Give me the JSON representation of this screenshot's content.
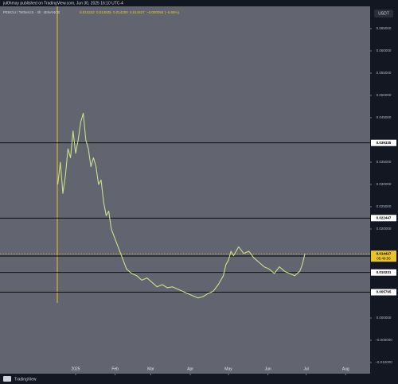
{
  "chart_data": {
    "type": "line",
    "publisher": "jul0hmay published on TradingView.com, Jun 30, 2025 16:10 UTC-4",
    "title": "PENGU / TetherUS · 4h · BINANCE",
    "ohlc": [
      "0.014242",
      "0.014525",
      "0.014259",
      "0.014427",
      "−0.000093 (−0.65%)"
    ],
    "currency": "USDT",
    "brand": "TradingView",
    "x": [
      -14,
      -12,
      -10,
      -8,
      -6,
      -4,
      -2,
      0,
      2,
      4,
      6,
      8,
      10,
      12,
      14,
      16,
      18,
      20,
      22,
      24,
      26,
      28,
      32,
      36,
      40,
      44,
      48,
      52,
      56,
      60,
      64,
      68,
      72,
      76,
      80,
      84,
      88,
      92,
      96,
      100,
      104,
      108,
      112,
      116,
      118,
      120,
      122,
      124,
      128,
      132,
      136,
      140,
      144,
      148,
      152,
      156,
      160,
      164,
      168,
      172,
      176,
      178,
      180
    ],
    "series": [
      {
        "color": "#c8e08a",
        "values": [
          0.03,
          0.035,
          0.028,
          0.032,
          0.038,
          0.036,
          0.042,
          0.037,
          0.04,
          0.044,
          0.046,
          0.04,
          0.038,
          0.034,
          0.036,
          0.034,
          0.03,
          0.031,
          0.026,
          0.023,
          0.024,
          0.02,
          0.017,
          0.014,
          0.011,
          0.01,
          0.0095,
          0.0085,
          0.009,
          0.008,
          0.007,
          0.0075,
          0.0068,
          0.007,
          0.0065,
          0.006,
          0.0055,
          0.005,
          0.0045,
          0.0048,
          0.0055,
          0.006,
          0.0075,
          0.0095,
          0.012,
          0.013,
          0.015,
          0.014,
          0.016,
          0.0145,
          0.015,
          0.0135,
          0.0125,
          0.0115,
          0.011,
          0.01,
          0.0115,
          0.0105,
          0.01,
          0.0095,
          0.0105,
          0.012,
          0.0144
        ]
      }
    ],
    "xlim": [
      -59.4,
      231.25
    ],
    "xticks": [
      {
        "value": 0,
        "label": "2025"
      },
      {
        "value": 31,
        "label": "Feb"
      },
      {
        "value": 59,
        "label": "Mar"
      },
      {
        "value": 90,
        "label": "Apr"
      },
      {
        "value": 120,
        "label": "May"
      },
      {
        "value": 151,
        "label": "Jun"
      },
      {
        "value": 181,
        "label": "Jul"
      },
      {
        "value": 212,
        "label": "Aug"
      }
    ],
    "ylim": [
      -0.0125,
      0.07
    ],
    "yticks": [
      {
        "value": 0.065,
        "label": "0.065000"
      },
      {
        "value": 0.06,
        "label": "0.060000"
      },
      {
        "value": 0.055,
        "label": "0.055000"
      },
      {
        "value": 0.05,
        "label": "0.050000"
      },
      {
        "value": 0.045,
        "label": "0.045000"
      },
      {
        "value": 0.035,
        "label": "0.035000"
      },
      {
        "value": 0.03,
        "label": "0.030000"
      },
      {
        "value": 0.025,
        "label": "0.025000"
      },
      {
        "value": 0.02,
        "label": "0.020000"
      },
      {
        "value": 0,
        "label": "0.000000"
      },
      {
        "value": -0.005,
        "label": "−0.005000"
      },
      {
        "value": -0.01,
        "label": "−0.010000"
      }
    ],
    "levels": [
      0.039335,
      0.022447,
      0.013927,
      0.010231,
      0.005795
    ],
    "last_price": 0.014427,
    "countdown": "05:49:56",
    "vertical_line": {
      "x": -14.4,
      "color": "#e8c42a"
    }
  }
}
